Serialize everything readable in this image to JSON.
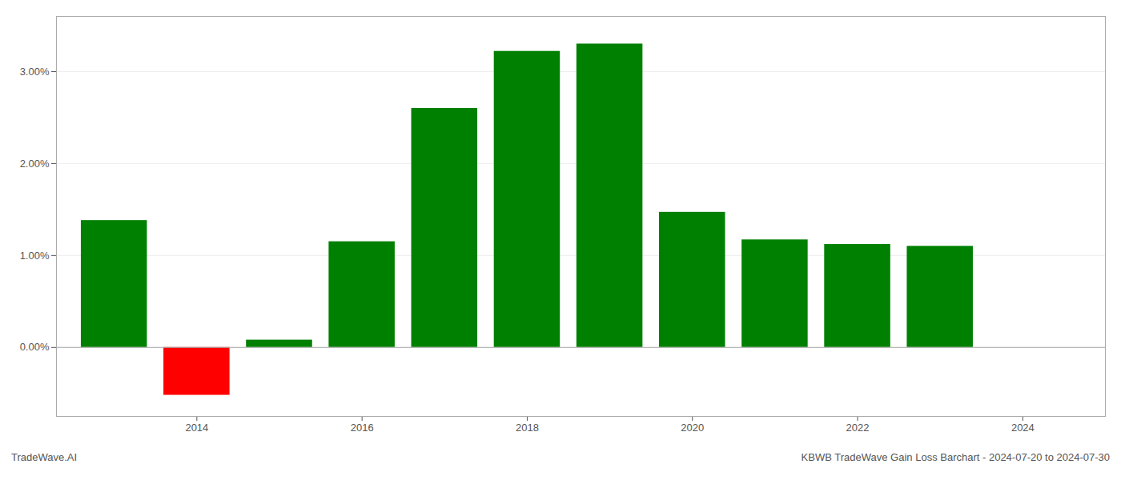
{
  "chart_data": {
    "type": "bar",
    "x": [
      2013,
      2014,
      2015,
      2016,
      2017,
      2018,
      2019,
      2020,
      2021,
      2022,
      2023
    ],
    "values": [
      1.38,
      -0.52,
      0.08,
      1.15,
      2.6,
      3.22,
      3.3,
      1.47,
      1.17,
      1.12,
      1.1
    ],
    "colors": [
      "#008000",
      "#ff0000",
      "#008000",
      "#008000",
      "#008000",
      "#008000",
      "#008000",
      "#008000",
      "#008000",
      "#008000",
      "#008000"
    ],
    "xlim": [
      2012.3,
      2025.0
    ],
    "xticks": [
      2014,
      2016,
      2018,
      2020,
      2022,
      2024
    ],
    "ylim": [
      -0.75,
      3.6
    ],
    "yticks": [
      {
        "value": 0,
        "label": "0.00%"
      },
      {
        "value": 1,
        "label": "1.00%"
      },
      {
        "value": 2,
        "label": "2.00%"
      },
      {
        "value": 3,
        "label": "3.00%"
      }
    ],
    "grid": true,
    "annotations": [
      "TradeWave.AI",
      "KBWB TradeWave Gain Loss Barchart - 2024-07-20 to 2024-07-30"
    ]
  }
}
